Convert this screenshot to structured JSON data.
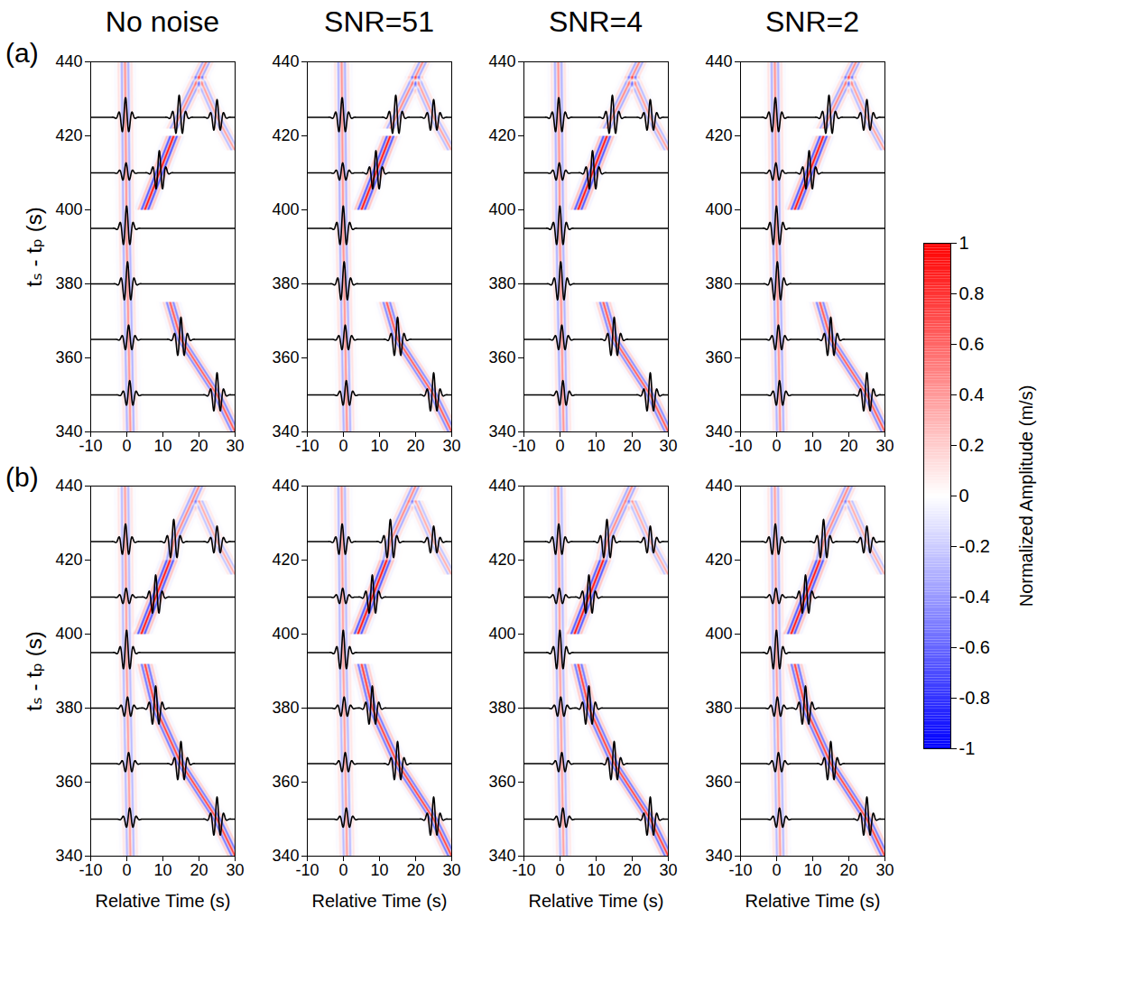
{
  "chart_data": {
    "type": "heatmap",
    "panel_titles": [
      "No noise",
      "SNR=51",
      "SNR=4",
      "SNR=2"
    ],
    "xlabel": "Relative Time (s)",
    "ylabel": "tₛ - tₚ (s)",
    "xlim": [
      -10,
      30
    ],
    "xticks": [
      -10,
      0,
      10,
      20,
      30
    ],
    "ylim": [
      340,
      440
    ],
    "yticks": [
      340,
      360,
      380,
      400,
      420,
      440
    ],
    "trace_offsets": [
      350,
      365,
      380,
      395,
      410,
      425
    ],
    "legend": "right",
    "colorbar": {
      "label": "Normalized Amplitude (m/s)",
      "range": [
        -1,
        1
      ],
      "ticks": [
        -1,
        -0.8,
        -0.6,
        -0.4,
        -0.2,
        0,
        0.2,
        0.4,
        0.6,
        0.8,
        1
      ],
      "colors": [
        "#0000ff",
        "#ffffff",
        "#ff0000"
      ]
    },
    "rows": [
      {
        "label": "(a)",
        "phases": [
          {
            "points": [
              [
                1,
                340
              ],
              [
                0,
                390
              ],
              [
                -0.5,
                440
              ]
            ],
            "amplitude": 0.45
          },
          {
            "points": [
              [
                31,
                338
              ],
              [
                25,
                350
              ],
              [
                15,
                365
              ],
              [
                12,
                375
              ]
            ],
            "amplitude": 0.7
          },
          {
            "points": [
              [
                5,
                400
              ],
              [
                9,
                410
              ],
              [
                13,
                420
              ]
            ],
            "amplitude": 1
          },
          {
            "points": [
              [
                13,
                422
              ],
              [
                22,
                440
              ]
            ],
            "amplitude": 0.5
          },
          {
            "points": [
              [
                30,
                416
              ],
              [
                25,
                425
              ],
              [
                20,
                436
              ]
            ],
            "amplitude": 0.4
          }
        ]
      },
      {
        "label": "(b)",
        "phases": [
          {
            "points": [
              [
                1,
                340
              ],
              [
                0,
                390
              ],
              [
                -0.5,
                440
              ]
            ],
            "amplitude": 0.4
          },
          {
            "points": [
              [
                31,
                338
              ],
              [
                25,
                350
              ],
              [
                15,
                365
              ],
              [
                8,
                380
              ],
              [
                5,
                392
              ]
            ],
            "amplitude": 0.8
          },
          {
            "points": [
              [
                4,
                400
              ],
              [
                8,
                410
              ],
              [
                12,
                420
              ]
            ],
            "amplitude": 1
          },
          {
            "points": [
              [
                12,
                420
              ],
              [
                13,
                425
              ],
              [
                20,
                440
              ]
            ],
            "amplitude": 0.5
          },
          {
            "points": [
              [
                30,
                416
              ],
              [
                25,
                425
              ],
              [
                20,
                436
              ]
            ],
            "amplitude": 0.35
          }
        ]
      }
    ]
  }
}
